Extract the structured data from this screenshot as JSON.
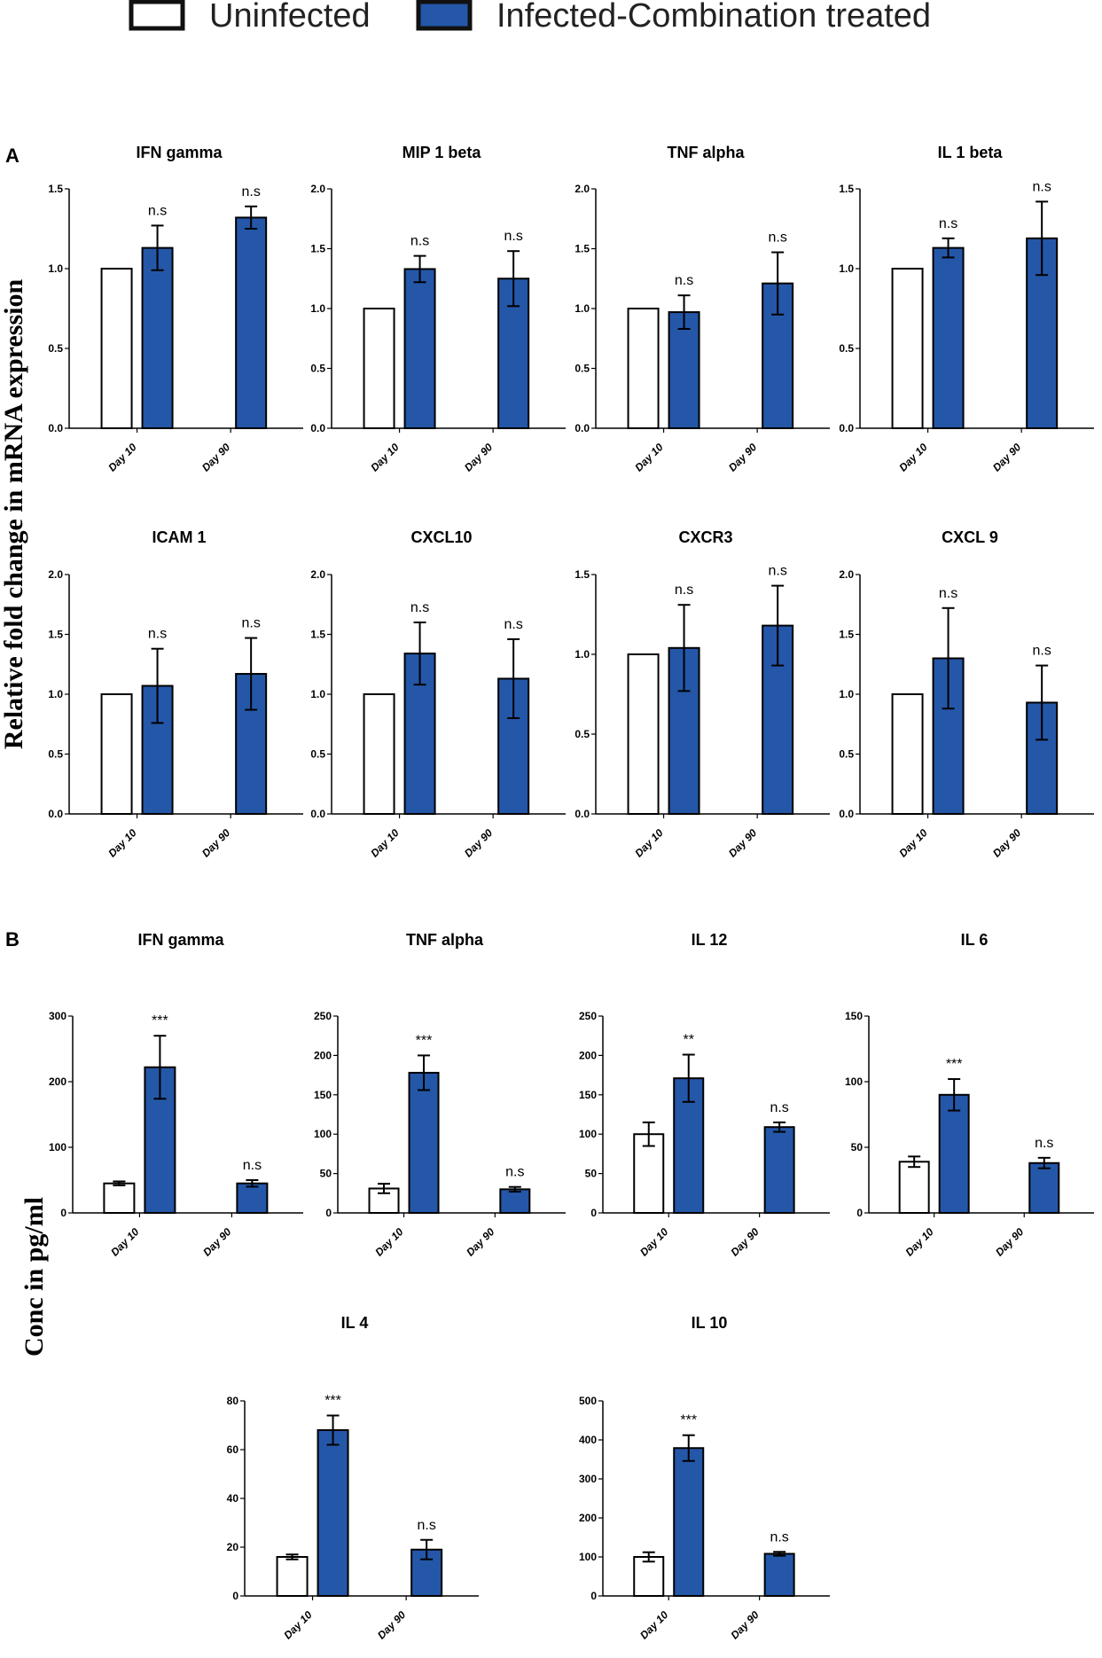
{
  "legend": {
    "uninfected": "Uninfected",
    "infected": "Infected-Combination treated",
    "uninfected_color": "#ffffff",
    "infected_color": "#2457a8"
  },
  "panels": {
    "a_label": "A",
    "b_label": "B",
    "a_ylabel": "Relative fold change in mRNA expression",
    "b_ylabel": "Conc in pg/ml"
  },
  "chart_data": [
    {
      "type": "bar",
      "panel": "A",
      "title": "IFN gamma",
      "categories": [
        "Day 10",
        "Day 90"
      ],
      "ylim": [
        0,
        1.5
      ],
      "yticks": [
        "0.0",
        "0.5",
        "1.0",
        "1.5"
      ],
      "series": [
        {
          "name": "Uninfected",
          "values": [
            1.0,
            0
          ],
          "errors": [
            0,
            0
          ]
        },
        {
          "name": "Infected-Combination treated",
          "values": [
            1.13,
            1.32
          ],
          "errors": [
            0.14,
            0.07
          ]
        }
      ],
      "annotations": [
        "n.s",
        "n.s"
      ]
    },
    {
      "type": "bar",
      "panel": "A",
      "title": "MIP 1 beta",
      "categories": [
        "Day 10",
        "Day 90"
      ],
      "ylim": [
        0,
        2.0
      ],
      "yticks": [
        "0.0",
        "0.5",
        "1.0",
        "1.5",
        "2.0"
      ],
      "series": [
        {
          "name": "Uninfected",
          "values": [
            1.0,
            0
          ],
          "errors": [
            0,
            0
          ]
        },
        {
          "name": "Infected-Combination treated",
          "values": [
            1.33,
            1.25
          ],
          "errors": [
            0.11,
            0.23
          ]
        }
      ],
      "annotations": [
        "n.s",
        "n.s"
      ]
    },
    {
      "type": "bar",
      "panel": "A",
      "title": "TNF alpha",
      "categories": [
        "Day 10",
        "Day 90"
      ],
      "ylim": [
        0,
        2.0
      ],
      "yticks": [
        "0.0",
        "0.5",
        "1.0",
        "1.5",
        "2.0"
      ],
      "series": [
        {
          "name": "Uninfected",
          "values": [
            1.0,
            0
          ],
          "errors": [
            0,
            0
          ]
        },
        {
          "name": "Infected-Combination treated",
          "values": [
            0.97,
            1.21
          ],
          "errors": [
            0.14,
            0.26
          ]
        }
      ],
      "annotations": [
        "n.s",
        "n.s"
      ]
    },
    {
      "type": "bar",
      "panel": "A",
      "title": "IL 1 beta",
      "categories": [
        "Day 10",
        "Day 90"
      ],
      "ylim": [
        0,
        1.5
      ],
      "yticks": [
        "0.0",
        "0.5",
        "1.0",
        "1.5"
      ],
      "series": [
        {
          "name": "Uninfected",
          "values": [
            1.0,
            0
          ],
          "errors": [
            0,
            0
          ]
        },
        {
          "name": "Infected-Combination treated",
          "values": [
            1.13,
            1.19
          ],
          "errors": [
            0.06,
            0.23
          ]
        }
      ],
      "annotations": [
        "n.s",
        "n.s"
      ]
    },
    {
      "type": "bar",
      "panel": "A",
      "title": "ICAM 1",
      "categories": [
        "Day 10",
        "Day 90"
      ],
      "ylim": [
        0,
        2.0
      ],
      "yticks": [
        "0.0",
        "0.5",
        "1.0",
        "1.5",
        "2.0"
      ],
      "series": [
        {
          "name": "Uninfected",
          "values": [
            1.0,
            0
          ],
          "errors": [
            0,
            0
          ]
        },
        {
          "name": "Infected-Combination treated",
          "values": [
            1.07,
            1.17
          ],
          "errors": [
            0.31,
            0.3
          ]
        }
      ],
      "annotations": [
        "n.s",
        "n.s"
      ]
    },
    {
      "type": "bar",
      "panel": "A",
      "title": "CXCL10",
      "categories": [
        "Day 10",
        "Day 90"
      ],
      "ylim": [
        0,
        2.0
      ],
      "yticks": [
        "0.0",
        "0.5",
        "1.0",
        "1.5",
        "2.0"
      ],
      "series": [
        {
          "name": "Uninfected",
          "values": [
            1.0,
            0
          ],
          "errors": [
            0,
            0
          ]
        },
        {
          "name": "Infected-Combination treated",
          "values": [
            1.34,
            1.13
          ],
          "errors": [
            0.26,
            0.33
          ]
        }
      ],
      "annotations": [
        "n.s",
        "n.s"
      ]
    },
    {
      "type": "bar",
      "panel": "A",
      "title": "CXCR3",
      "categories": [
        "Day 10",
        "Day 90"
      ],
      "ylim": [
        0,
        1.5
      ],
      "yticks": [
        "0.0",
        "0.5",
        "1.0",
        "1.5"
      ],
      "series": [
        {
          "name": "Uninfected",
          "values": [
            1.0,
            0
          ],
          "errors": [
            0,
            0
          ]
        },
        {
          "name": "Infected-Combination treated",
          "values": [
            1.04,
            1.18
          ],
          "errors": [
            0.27,
            0.25
          ]
        }
      ],
      "annotations": [
        "n.s",
        "n.s"
      ]
    },
    {
      "type": "bar",
      "panel": "A",
      "title": "CXCL 9",
      "categories": [
        "Day 10",
        "Day 90"
      ],
      "ylim": [
        0,
        2.0
      ],
      "yticks": [
        "0.0",
        "0.5",
        "1.0",
        "1.5",
        "2.0"
      ],
      "series": [
        {
          "name": "Uninfected",
          "values": [
            1.0,
            0
          ],
          "errors": [
            0,
            0
          ]
        },
        {
          "name": "Infected-Combination treated",
          "values": [
            1.3,
            0.93
          ],
          "errors": [
            0.42,
            0.31
          ]
        }
      ],
      "annotations": [
        "n.s",
        "n.s"
      ]
    },
    {
      "type": "bar",
      "panel": "B",
      "title": "IFN gamma",
      "categories": [
        "Day 10",
        "Day 90"
      ],
      "ylim": [
        0,
        300
      ],
      "yticks": [
        "0",
        "100",
        "200",
        "300"
      ],
      "series": [
        {
          "name": "Uninfected",
          "values": [
            45,
            0
          ],
          "errors": [
            3,
            0
          ]
        },
        {
          "name": "Infected-Combination treated",
          "values": [
            222,
            45
          ],
          "errors": [
            48,
            5
          ]
        }
      ],
      "annotations": [
        "***",
        "n.s"
      ]
    },
    {
      "type": "bar",
      "panel": "B",
      "title": "TNF alpha",
      "categories": [
        "Day 10",
        "Day 90"
      ],
      "ylim": [
        0,
        250
      ],
      "yticks": [
        "0",
        "50",
        "100",
        "150",
        "200",
        "250"
      ],
      "series": [
        {
          "name": "Uninfected",
          "values": [
            31,
            0
          ],
          "errors": [
            6,
            0
          ]
        },
        {
          "name": "Infected-Combination treated",
          "values": [
            178,
            30
          ],
          "errors": [
            22,
            3
          ]
        }
      ],
      "annotations": [
        "***",
        "n.s"
      ]
    },
    {
      "type": "bar",
      "panel": "B",
      "title": "IL 12",
      "categories": [
        "Day 10",
        "Day 90"
      ],
      "ylim": [
        0,
        250
      ],
      "yticks": [
        "0",
        "50",
        "100",
        "150",
        "200",
        "250"
      ],
      "series": [
        {
          "name": "Uninfected",
          "values": [
            100,
            0
          ],
          "errors": [
            15,
            0
          ]
        },
        {
          "name": "Infected-Combination treated",
          "values": [
            171,
            109
          ],
          "errors": [
            30,
            6
          ]
        }
      ],
      "annotations": [
        "**",
        "n.s"
      ]
    },
    {
      "type": "bar",
      "panel": "B",
      "title": "IL 6",
      "categories": [
        "Day 10",
        "Day 90"
      ],
      "ylim": [
        0,
        150
      ],
      "yticks": [
        "0",
        "50",
        "100",
        "150"
      ],
      "series": [
        {
          "name": "Uninfected",
          "values": [
            39,
            0
          ],
          "errors": [
            4,
            0
          ]
        },
        {
          "name": "Infected-Combination treated",
          "values": [
            90,
            38
          ],
          "errors": [
            12,
            4
          ]
        }
      ],
      "annotations": [
        "***",
        "n.s"
      ]
    },
    {
      "type": "bar",
      "panel": "B",
      "title": "IL 4",
      "categories": [
        "Day 10",
        "Day 90"
      ],
      "ylim": [
        0,
        80
      ],
      "yticks": [
        "0",
        "20",
        "40",
        "60",
        "80"
      ],
      "series": [
        {
          "name": "Uninfected",
          "values": [
            16,
            0
          ],
          "errors": [
            1,
            0
          ]
        },
        {
          "name": "Infected-Combination treated",
          "values": [
            68,
            19
          ],
          "errors": [
            6,
            4
          ]
        }
      ],
      "annotations": [
        "***",
        "n.s"
      ]
    },
    {
      "type": "bar",
      "panel": "B",
      "title": "IL 10",
      "categories": [
        "Day 10",
        "Day 90"
      ],
      "ylim": [
        0,
        500
      ],
      "yticks": [
        "0",
        "100",
        "200",
        "300",
        "400",
        "500"
      ],
      "series": [
        {
          "name": "Uninfected",
          "values": [
            100,
            0
          ],
          "errors": [
            12,
            0
          ]
        },
        {
          "name": "Infected-Combination treated",
          "values": [
            379,
            108
          ],
          "errors": [
            33,
            5
          ]
        }
      ],
      "annotations": [
        "***",
        "n.s"
      ]
    }
  ]
}
